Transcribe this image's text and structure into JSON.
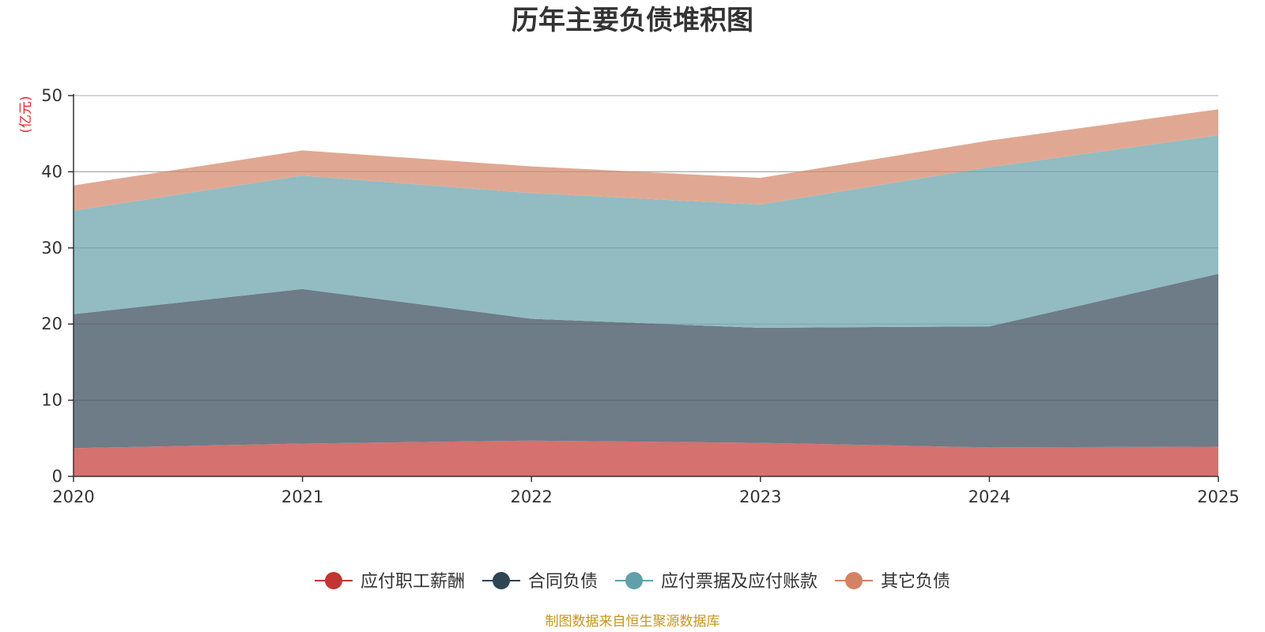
{
  "chart_data": {
    "type": "area",
    "stacked": true,
    "title": "历年主要负债堆积图",
    "unit_label": "(亿元)",
    "x": [
      "2020",
      "2021",
      "2022",
      "2023",
      "2024",
      "2025"
    ],
    "ylim": [
      0,
      50
    ],
    "yticks": [
      0,
      10,
      20,
      30,
      40,
      50
    ],
    "series": [
      {
        "name": "应付职工薪酬",
        "color": "#c23531",
        "fill": "#d5716e",
        "values": [
          3.7,
          4.3,
          4.7,
          4.4,
          3.8,
          3.9
        ]
      },
      {
        "name": "合同负债",
        "color": "#2f4554",
        "fill": "#6e7c87",
        "values": [
          17.6,
          20.3,
          16.0,
          15.1,
          15.9,
          22.7
        ]
      },
      {
        "name": "应付票据及应付账款",
        "color": "#61a0a8",
        "fill": "#92bcc2",
        "values": [
          13.6,
          14.9,
          16.5,
          16.2,
          20.9,
          18.2
        ]
      },
      {
        "name": "其它负债",
        "color": "#d48265",
        "fill": "#e0a892",
        "values": [
          3.3,
          3.3,
          3.5,
          3.5,
          3.5,
          3.4
        ]
      }
    ],
    "legend_position": "bottom",
    "source": "制图数据来自恒生聚源数据库"
  }
}
